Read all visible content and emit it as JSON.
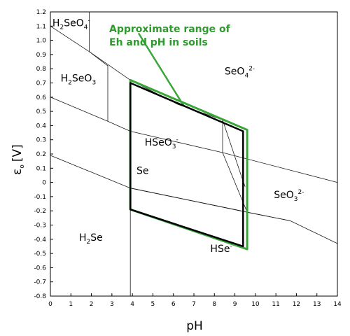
{
  "chart_data": {
    "type": "line",
    "title": "",
    "xlabel": "pH",
    "ylabel_main": "ε",
    "ylabel_sub": "o",
    "ylabel_unit": "[V]",
    "xlim": [
      0,
      14
    ],
    "ylim": [
      -0.8,
      1.2
    ],
    "x_ticks": [
      {
        "value": 0,
        "label": "0"
      },
      {
        "value": 1,
        "label": "1"
      },
      {
        "value": 2,
        "label": "2"
      },
      {
        "value": 3,
        "label": "3"
      },
      {
        "value": 4,
        "label": "4"
      },
      {
        "value": 5,
        "label": "5"
      },
      {
        "value": 6,
        "label": "6"
      },
      {
        "value": 7,
        "label": "7"
      },
      {
        "value": 8,
        "label": "8"
      },
      {
        "value": 9,
        "label": "9"
      },
      {
        "value": 10,
        "label": "10"
      },
      {
        "value": 11,
        "label": "11"
      },
      {
        "value": 12,
        "label": "12"
      },
      {
        "value": 13,
        "label": "13"
      },
      {
        "value": 14,
        "label": "14"
      }
    ],
    "y_ticks": [
      {
        "value": 1.2,
        "label": "1.2"
      },
      {
        "value": 1.1,
        "label": "1.1"
      },
      {
        "value": 1.0,
        "label": "1.0"
      },
      {
        "value": 0.9,
        "label": "0.9"
      },
      {
        "value": 0.8,
        "label": "0.8"
      },
      {
        "value": 0.7,
        "label": "0.7"
      },
      {
        "value": 0.6,
        "label": "0.6"
      },
      {
        "value": 0.5,
        "label": "0.5"
      },
      {
        "value": 0.4,
        "label": "0.4"
      },
      {
        "value": 0.3,
        "label": "0.3"
      },
      {
        "value": 0.2,
        "label": "0.2"
      },
      {
        "value": 0.1,
        "label": "0.1"
      },
      {
        "value": 0,
        "label": "0"
      },
      {
        "value": -0.1,
        "label": "-0.1"
      },
      {
        "value": -0.2,
        "label": "-0.2"
      },
      {
        "value": -0.3,
        "label": "-0.3"
      },
      {
        "value": -0.4,
        "label": "-0.4"
      },
      {
        "value": -0.5,
        "label": "-0.5"
      },
      {
        "value": -0.6,
        "label": "-0.6"
      },
      {
        "value": -0.7,
        "label": "-0.7"
      },
      {
        "value": -0.8,
        "label": "-0.8"
      }
    ],
    "grid": false,
    "boundaries": [
      {
        "points": [
          [
            0,
            1.1
          ],
          [
            1.9,
            0.92
          ],
          [
            3.9,
            0.72
          ]
        ]
      },
      {
        "points": [
          [
            1.9,
            1.2
          ],
          [
            1.9,
            0.92
          ]
        ]
      },
      {
        "points": [
          [
            3.9,
            0.72
          ],
          [
            9.6,
            0.37
          ]
        ]
      },
      {
        "points": [
          [
            0,
            0.6
          ],
          [
            2.8,
            0.43
          ],
          [
            3.9,
            0.36
          ],
          [
            8.4,
            0.21
          ],
          [
            14,
            0.0
          ]
        ]
      },
      {
        "points": [
          [
            1.9,
            0.92
          ],
          [
            2.8,
            0.82
          ],
          [
            2.8,
            0.43
          ]
        ]
      },
      {
        "points": [
          [
            3.9,
            0.72
          ],
          [
            6.2,
            0.55
          ],
          [
            8.4,
            0.44
          ],
          [
            9.3,
            0.05
          ],
          [
            9.5,
            -0.03
          ]
        ]
      },
      {
        "points": [
          [
            8.4,
            0.44
          ],
          [
            8.4,
            0.21
          ]
        ]
      },
      {
        "points": [
          [
            0,
            0.19
          ],
          [
            3.9,
            -0.04
          ],
          [
            9.6,
            -0.21
          ],
          [
            11.7,
            -0.27
          ],
          [
            14,
            -0.43
          ]
        ]
      },
      {
        "points": [
          [
            3.9,
            -0.04
          ],
          [
            9.3,
            -0.2
          ]
        ]
      },
      {
        "points": [
          [
            8.4,
            0.21
          ],
          [
            9.6,
            -0.21
          ],
          [
            11.7,
            -0.27
          ]
        ]
      },
      {
        "points": [
          [
            3.9,
            -0.04
          ],
          [
            3.9,
            -0.8
          ]
        ]
      }
    ],
    "soil_region": {
      "label": "Approximate range of Eh and pH in soils",
      "polygon": [
        [
          3.9,
          0.72
        ],
        [
          9.6,
          0.37
        ],
        [
          9.6,
          -0.47
        ],
        [
          3.9,
          -0.19
        ]
      ]
    },
    "inner_region": {
      "polygon": [
        [
          3.9,
          0.7
        ],
        [
          9.4,
          0.36
        ],
        [
          9.4,
          -0.45
        ],
        [
          3.9,
          -0.19
        ]
      ]
    },
    "annotation_leader": [
      [
        6.5,
        0.54
      ],
      [
        4.3,
        1.05
      ]
    ],
    "species_labels": [
      {
        "main": "H",
        "sub": "2",
        "rest": "SeO",
        "sub2": "4",
        "sup": "-",
        "x": 0.1,
        "y": 1.1
      },
      {
        "main": "H",
        "sub": "2",
        "rest": "SeO",
        "sub2": "3",
        "sup": "",
        "x": 0.5,
        "y": 0.71
      },
      {
        "main": "HSeO",
        "sub": "",
        "rest": "",
        "sub2": "3",
        "sup": "-",
        "x": 4.6,
        "y": 0.26
      },
      {
        "main": "SeO",
        "sub": "",
        "rest": "",
        "sub2": "4",
        "sup": "2-",
        "x": 8.5,
        "y": 0.76
      },
      {
        "main": "Se",
        "sub": "",
        "rest": "",
        "sub2": "",
        "sup": "",
        "x": 4.2,
        "y": 0.06
      },
      {
        "main": "SeO",
        "sub": "",
        "rest": "",
        "sub2": "3",
        "sup": "2-",
        "x": 10.9,
        "y": -0.11
      },
      {
        "main": "H",
        "sub": "2",
        "rest": "Se",
        "sub2": "",
        "sup": "",
        "x": 1.4,
        "y": -0.41
      },
      {
        "main": "HSe",
        "sub": "",
        "rest": "",
        "sub2": "",
        "sup": "-",
        "x": 7.8,
        "y": -0.49
      }
    ]
  },
  "annotation": {
    "line1": "Approximate range of",
    "line2": "Eh and pH in soils"
  },
  "colors": {
    "soil_region": "#3aa63a",
    "inner_region": "#000000",
    "boundary": "#1a1a1a",
    "annotation": "#2e9a2e"
  }
}
